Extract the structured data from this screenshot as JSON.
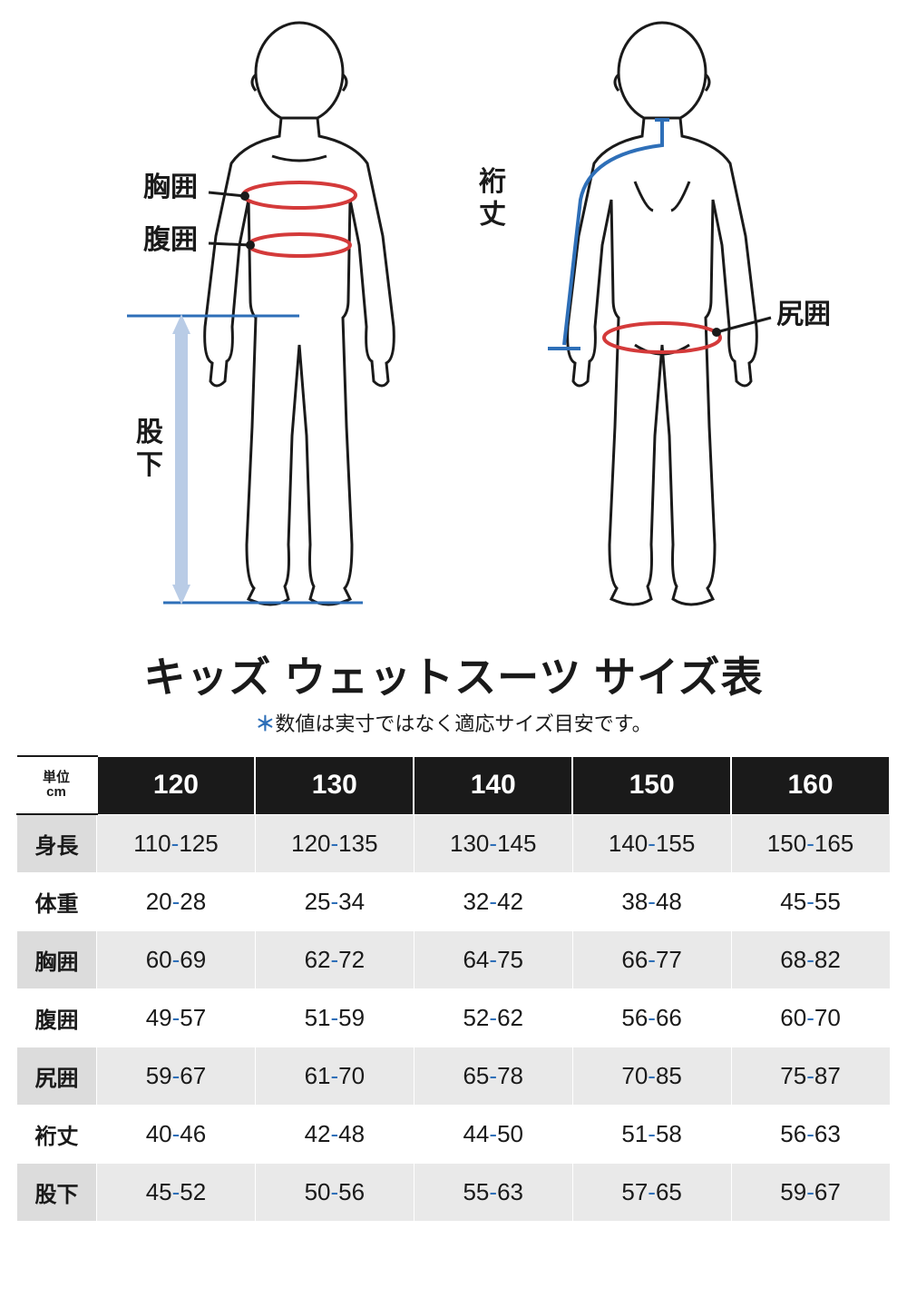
{
  "title": "キッズ ウェットスーツ サイズ表",
  "subtitle_asterisk": "＊",
  "subtitle": "数値は実寸ではなく適応サイズ目安です。",
  "diagram_labels": {
    "chest": "胸囲",
    "waist": "腹囲",
    "inseam_1": "股",
    "inseam_2": "下",
    "sleeve_1": "裄",
    "sleeve_2": "丈",
    "hip": "尻囲"
  },
  "colors": {
    "text": "#1a1a1a",
    "accent_red": "#d43a3a",
    "accent_blue": "#2e6fb8",
    "arrow_fill": "#b9cce6",
    "table_header_bg": "#1a1a1a",
    "table_header_fg": "#ffffff",
    "row_label_bg": "#dcdcdc",
    "data_alt_bg": "#e9e9e9",
    "hyphen": "#2e6fb8"
  },
  "table": {
    "corner_unit_1": "単位",
    "corner_unit_2": "cm",
    "sizes": [
      "120",
      "130",
      "140",
      "150",
      "160"
    ],
    "rows": [
      {
        "label": "身長",
        "values": [
          "110-125",
          "120-135",
          "130-145",
          "140-155",
          "150-165"
        ]
      },
      {
        "label": "体重",
        "values": [
          "20-28",
          "25-34",
          "32-42",
          "38-48",
          "45-55"
        ]
      },
      {
        "label": "胸囲",
        "values": [
          "60-69",
          "62-72",
          "64-75",
          "66-77",
          "68-82"
        ]
      },
      {
        "label": "腹囲",
        "values": [
          "49-57",
          "51-59",
          "52-62",
          "56-66",
          "60-70"
        ]
      },
      {
        "label": "尻囲",
        "values": [
          "59-67",
          "61-70",
          "65-78",
          "70-85",
          "75-87"
        ]
      },
      {
        "label": "裄丈",
        "values": [
          "40-46",
          "42-48",
          "44-50",
          "51-58",
          "56-63"
        ]
      },
      {
        "label": "股下",
        "values": [
          "45-52",
          "50-56",
          "55-63",
          "57-65",
          "59-67"
        ]
      }
    ]
  }
}
